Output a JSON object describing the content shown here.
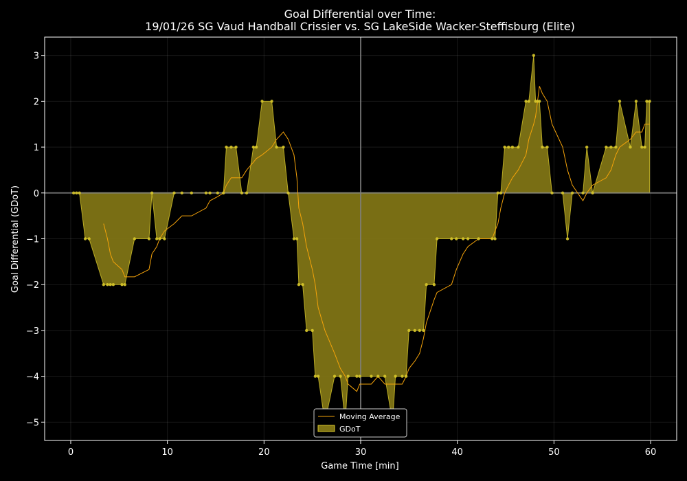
{
  "chart_data": {
    "type": "area",
    "title": "Goal Differential over Time:",
    "subtitle": "19/01/26 SG Vaud Handball Crissier  vs.  SG LakeSide Wacker-Steffisburg (Elite)",
    "xlabel": "Game Time [min]",
    "ylabel": "Goal Differential (GDoT)",
    "xlim": [
      -2.7,
      62.7
    ],
    "ylim": [
      -5.4,
      3.4
    ],
    "xticks": [
      0,
      10,
      20,
      30,
      40,
      50,
      60
    ],
    "yticks": [
      -5,
      -4,
      -3,
      -2,
      -1,
      0,
      1,
      2,
      3
    ],
    "grid": true,
    "halftime_line": 30,
    "legend_position": "bottom-center",
    "colors": {
      "background": "#000000",
      "area_fill": "#807415",
      "area_edge": "#d6c52a",
      "points": "#d6c52a",
      "moving_average": "#f5a30a",
      "zero_line": "#808080",
      "axes": "#ffffff"
    },
    "series": [
      {
        "name": "GDoT",
        "type": "area",
        "x": [
          0.3,
          0.6,
          0.9,
          1.5,
          1.9,
          3.4,
          3.8,
          4.1,
          4.4,
          5.3,
          5.6,
          6.6,
          8.1,
          8.4,
          8.9,
          9.2,
          9.7,
          10.7,
          11.5,
          12.5,
          14.0,
          14.4,
          15.2,
          15.8,
          16.1,
          16.6,
          17.1,
          17.7,
          18.2,
          18.9,
          19.2,
          19.8,
          20.8,
          21.3,
          22.0,
          22.5,
          23.1,
          23.4,
          23.6,
          24.0,
          24.4,
          25.0,
          25.3,
          25.6,
          26.3,
          27.3,
          27.9,
          28.4,
          28.7,
          29.6,
          29.9,
          31.1,
          31.8,
          32.5,
          33.3,
          33.6,
          34.3,
          34.7,
          35.0,
          35.6,
          36.1,
          36.5,
          36.8,
          37.6,
          37.9,
          39.4,
          39.9,
          40.6,
          41.1,
          42.2,
          43.6,
          43.9,
          44.2,
          44.5,
          44.9,
          45.3,
          45.7,
          46.3,
          47.1,
          47.4,
          47.9,
          48.1,
          48.3,
          48.5,
          48.8,
          49.3,
          49.8,
          50.9,
          51.4,
          51.9,
          53.0,
          53.4,
          54.0,
          55.4,
          55.9,
          56.4,
          56.8,
          57.9,
          58.5,
          59.1,
          59.4,
          59.6,
          59.9
        ],
        "y": [
          0,
          0,
          0,
          -1,
          -1,
          -2,
          -2,
          -2,
          -2,
          -2,
          -2,
          -1,
          -1,
          0,
          -1,
          -1,
          -1,
          0,
          0,
          0,
          0,
          0,
          0,
          0,
          1,
          1,
          1,
          0,
          0,
          1,
          1,
          2,
          2,
          1,
          1,
          0,
          -1,
          -1,
          -2,
          -2,
          -3,
          -3,
          -4,
          -4,
          -5,
          -4,
          -4,
          -5,
          -4,
          -4,
          -4,
          -4,
          -4,
          -4,
          -5,
          -4,
          -4,
          -4,
          -3,
          -3,
          -3,
          -3,
          -2,
          -2,
          -1,
          -1,
          -1,
          -1,
          -1,
          -1,
          -1,
          -1,
          0,
          0,
          1,
          1,
          1,
          1,
          2,
          2,
          3,
          2,
          2,
          2,
          1,
          1,
          0,
          0,
          -1,
          0,
          0,
          1,
          0,
          1,
          1,
          1,
          2,
          1,
          2,
          1,
          1,
          2,
          2
        ]
      },
      {
        "name": "Moving Average",
        "type": "line",
        "x": [
          3.4,
          3.8,
          4.1,
          4.4,
          5.3,
          5.6,
          6.6,
          8.1,
          8.4,
          8.9,
          9.2,
          9.7,
          10.7,
          11.5,
          12.5,
          14.0,
          14.4,
          15.2,
          15.8,
          16.1,
          16.6,
          17.1,
          17.7,
          18.2,
          18.9,
          19.2,
          19.8,
          20.8,
          21.3,
          22.0,
          22.5,
          23.1,
          23.4,
          23.6,
          24.0,
          24.4,
          25.0,
          25.3,
          25.6,
          26.3,
          27.3,
          27.9,
          28.4,
          28.7,
          29.6,
          29.9,
          31.1,
          31.8,
          32.5,
          33.3,
          33.6,
          34.3,
          34.7,
          35.0,
          35.6,
          36.1,
          36.5,
          36.8,
          37.6,
          37.9,
          39.4,
          39.9,
          40.6,
          41.1,
          42.2,
          43.6,
          43.9,
          44.2,
          44.5,
          44.9,
          45.3,
          45.7,
          46.3,
          47.1,
          47.4,
          47.9,
          48.1,
          48.3,
          48.5,
          48.8,
          49.3,
          49.8,
          50.9,
          51.4,
          51.9,
          53.0,
          53.4,
          54.0,
          55.4,
          55.9,
          56.4,
          56.8,
          57.9,
          58.5,
          59.1,
          59.4,
          59.6,
          59.9
        ],
        "y": [
          -0.67,
          -1.0,
          -1.33,
          -1.5,
          -1.67,
          -1.83,
          -1.83,
          -1.67,
          -1.33,
          -1.17,
          -1.0,
          -0.83,
          -0.67,
          -0.5,
          -0.5,
          -0.33,
          -0.17,
          -0.08,
          0.0,
          0.17,
          0.33,
          0.33,
          0.33,
          0.5,
          0.67,
          0.75,
          0.83,
          1.0,
          1.17,
          1.33,
          1.17,
          0.83,
          0.33,
          -0.33,
          -0.67,
          -1.17,
          -1.67,
          -2.0,
          -2.5,
          -3.0,
          -3.5,
          -3.83,
          -4.0,
          -4.17,
          -4.33,
          -4.17,
          -4.17,
          -4.0,
          -4.17,
          -4.17,
          -4.17,
          -4.17,
          -4.0,
          -3.83,
          -3.67,
          -3.5,
          -3.17,
          -2.83,
          -2.33,
          -2.17,
          -2.0,
          -1.67,
          -1.33,
          -1.17,
          -1.0,
          -1.0,
          -0.83,
          -0.67,
          -0.33,
          0.0,
          0.17,
          0.33,
          0.5,
          0.83,
          1.17,
          1.5,
          1.67,
          2.0,
          2.33,
          2.17,
          2.0,
          1.5,
          1.0,
          0.5,
          0.17,
          -0.17,
          0.0,
          0.17,
          0.33,
          0.5,
          0.83,
          1.0,
          1.17,
          1.33,
          1.33,
          1.5,
          1.5,
          1.5
        ]
      }
    ]
  }
}
